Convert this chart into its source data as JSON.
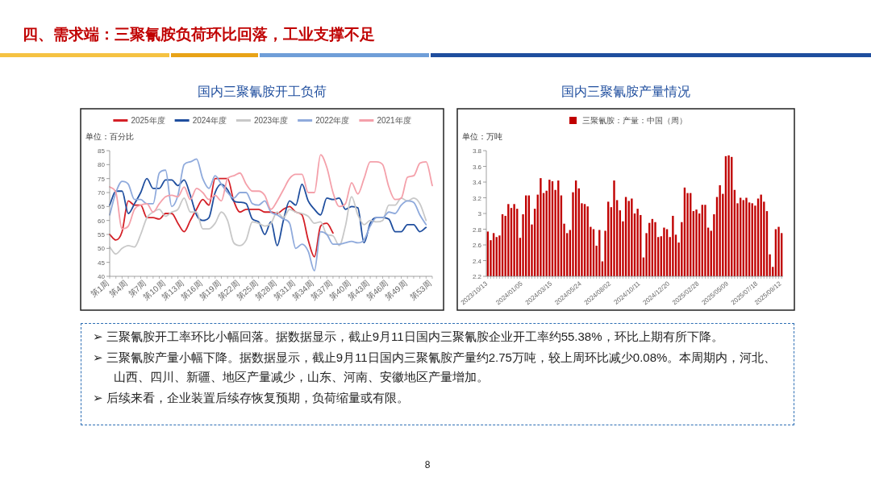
{
  "chart_data": [
    {
      "type": "line",
      "title": "国内三聚氰胺开工负荷",
      "ylabel": "单位：百分比",
      "legend": "top",
      "ylim": [
        40,
        85
      ],
      "yticks": [
        40,
        45,
        50,
        55,
        60,
        65,
        70,
        75,
        80,
        85
      ],
      "categories": [
        "第1周",
        null,
        null,
        "第4周",
        null,
        null,
        "第7周",
        null,
        null,
        "第10周",
        null,
        null,
        "第13周",
        null,
        null,
        "第16周",
        null,
        null,
        "第19周",
        null,
        null,
        "第22周",
        null,
        null,
        "第25周",
        null,
        null,
        "第28周",
        null,
        null,
        "第31周",
        null,
        null,
        "第34周",
        null,
        null,
        "第37周",
        null,
        null,
        "第40周",
        null,
        null,
        "第43周",
        null,
        null,
        "第46周",
        null,
        null,
        "第49周",
        null,
        null,
        null,
        "第53周"
      ],
      "series": [
        {
          "name": "2025年度",
          "color": "#d42027",
          "values": [
            55,
            53,
            56,
            67,
            65.5,
            65.5,
            61,
            61,
            60.5,
            62.5,
            62.5,
            59,
            56,
            60,
            64,
            67.5,
            65.5,
            75,
            75,
            75,
            67,
            63,
            64,
            64,
            64,
            63,
            63,
            62.5,
            64,
            65,
            63,
            62,
            53,
            47,
            58,
            59,
            55.5,
            null,
            null,
            null,
            null,
            null,
            null,
            null,
            null,
            null,
            null,
            null,
            null,
            null,
            null,
            null,
            null
          ]
        },
        {
          "name": "2024年度",
          "color": "#1f4e9e",
          "values": [
            65.5,
            70.5,
            70.5,
            62.5,
            66,
            70,
            75,
            71.5,
            71.5,
            74.5,
            74.5,
            72.5,
            74.5,
            69,
            62,
            60,
            61,
            70,
            73,
            71,
            67,
            66.5,
            66,
            60.5,
            59.5,
            55,
            59.5,
            51,
            60,
            67,
            65.5,
            73,
            67,
            64,
            62,
            68,
            67.5,
            68,
            64,
            65,
            64.5,
            52,
            59,
            61,
            61,
            60.5,
            56,
            56,
            58.5,
            58.5,
            56,
            57.5,
            null
          ]
        },
        {
          "name": "2023年度",
          "color": "#c8c8c8",
          "values": [
            50.5,
            48,
            50,
            51,
            50.5,
            55,
            61,
            63,
            64,
            61.5,
            63,
            64,
            68,
            63,
            63,
            57,
            57,
            59,
            63,
            60,
            52,
            51,
            53,
            59.5,
            59,
            58,
            59,
            63,
            61,
            64,
            63,
            62.5,
            61.5,
            59,
            59.5,
            55,
            54.5,
            51,
            58,
            68.5,
            62,
            58.5,
            60,
            59.5,
            60,
            65.5,
            65.5,
            68,
            67,
            68,
            66,
            60,
            null
          ]
        },
        {
          "name": "2022年度",
          "color": "#8faadc",
          "values": [
            62,
            70,
            74,
            73,
            67.5,
            67.5,
            66,
            66,
            77,
            78,
            65,
            69,
            80,
            81,
            82,
            75,
            71.5,
            76,
            73,
            70,
            68,
            70,
            70,
            66,
            65.5,
            67,
            63,
            62,
            60.5,
            59,
            50,
            51.5,
            49,
            42,
            56,
            55,
            51.5,
            51.5,
            52,
            52.5,
            52,
            53,
            58,
            61,
            61,
            63,
            62.5,
            65.5,
            67,
            66.5,
            62,
            58.5,
            null
          ]
        },
        {
          "name": "2021年度",
          "color": "#f4a0aa",
          "values": [
            72,
            70,
            57,
            58,
            64,
            65.5,
            66,
            63,
            66,
            68.5,
            69,
            68.5,
            72,
            67.5,
            71.5,
            70,
            67.5,
            69,
            67,
            75,
            76,
            77,
            73,
            70.5,
            70.5,
            69,
            64,
            67,
            71,
            75,
            76.5,
            76.5,
            70,
            70,
            83.5,
            79,
            70,
            65,
            66,
            73.5,
            69.5,
            75,
            81,
            81,
            80,
            72,
            67.5,
            68,
            75.5,
            76,
            80.5,
            81,
            72.5
          ]
        }
      ]
    },
    {
      "type": "bar",
      "title": "国内三聚氰胺产量情况",
      "ylabel": "单位：万吨",
      "legend": "top",
      "ylim": [
        2.2,
        3.8
      ],
      "yticks": [
        2.2,
        2.4,
        2.6,
        2.8,
        3,
        3.2,
        3.4,
        3.6,
        3.8
      ],
      "categories": [
        "2023/10/13",
        null,
        null,
        null,
        null,
        null,
        null,
        null,
        null,
        null,
        null,
        null,
        "2024/01/05",
        null,
        null,
        null,
        null,
        null,
        null,
        null,
        null,
        null,
        "2024/03/15",
        null,
        null,
        null,
        null,
        null,
        null,
        null,
        null,
        null,
        "2024/05/24",
        null,
        null,
        null,
        null,
        null,
        null,
        null,
        null,
        null,
        "2024/08/02",
        null,
        null,
        null,
        null,
        null,
        null,
        null,
        null,
        null,
        "2024/10/11",
        null,
        null,
        null,
        null,
        null,
        null,
        null,
        null,
        null,
        "2024/12/20",
        null,
        null,
        null,
        null,
        null,
        null,
        null,
        null,
        null,
        "2025/02/28",
        null,
        null,
        null,
        null,
        null,
        null,
        null,
        null,
        null,
        "2025/05/09",
        null,
        null,
        null,
        null,
        null,
        null,
        null,
        null,
        null,
        "2025/07/18",
        null,
        null,
        null,
        null,
        null,
        null,
        null,
        "2025/09/12"
      ],
      "series": [
        {
          "name": "三聚氰胺：产量：中国（周）",
          "color": "#c00000",
          "values": [
            2.77,
            2.66,
            2.75,
            2.7,
            2.72,
            2.99,
            2.97,
            3.12,
            3.07,
            3.12,
            3.06,
            2.69,
            2.99,
            3.23,
            3.23,
            2.86,
            3.06,
            3.24,
            3.45,
            3.26,
            3.29,
            3.43,
            3.41,
            3.3,
            3.42,
            3.23,
            2.87,
            2.75,
            2.79,
            3.27,
            3.42,
            3.32,
            3.13,
            3.12,
            3.09,
            2.83,
            2.8,
            2.59,
            2.79,
            2.39,
            2.78,
            3.15,
            3.08,
            3.42,
            3.17,
            3.04,
            2.9,
            3.21,
            3.16,
            3.19,
            3.0,
            3.06,
            2.98,
            2.44,
            2.75,
            2.88,
            2.93,
            2.89,
            2.7,
            2.71,
            2.82,
            2.8,
            2.7,
            2.97,
            2.73,
            2.63,
            2.89,
            3.33,
            3.26,
            3.26,
            3.03,
            3.05,
            3.0,
            3.11,
            3.11,
            2.82,
            2.78,
            2.99,
            3.21,
            3.36,
            3.25,
            3.73,
            3.74,
            3.72,
            3.3,
            3.13,
            3.2,
            3.17,
            3.2,
            3.14,
            3.13,
            3.1,
            3.19,
            3.24,
            3.15,
            3.03,
            2.48,
            2.32,
            2.8,
            2.83,
            2.75
          ]
        }
      ]
    },
    {
      "type": "other",
      "title": "四、需求端：三聚氰胺负荷环比回落，工业支撑不足",
      "annotations": [
        "➢ 三聚氰胺开工率环比小幅回落。据数据显示，截止9月11日国内三聚氰胺企业开工率约55.38%，环比上期有所下降。",
        "➢ 三聚氰胺产量小幅下降。据数据显示，截止9月11日国内三聚氰胺产量约2.75万吨，较上周环比减少0.08%。本周期内，河北、山西、四川、新疆、地区产量减少，山东、河南、安徽地区产量增加。",
        "➢ 后续来看，企业装置后续存恢复预期，负荷缩量或有限。",
        "8"
      ]
    }
  ]
}
